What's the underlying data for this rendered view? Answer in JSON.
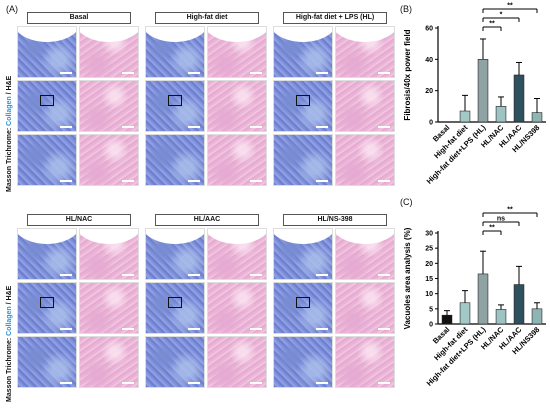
{
  "panel_a": {
    "letter": "(A)",
    "y_label_prefix": "Masson Trichrome: ",
    "y_label_blue": "Collagen",
    "y_label_suffix": " / H&E",
    "groups_top": [
      "Basal",
      "High-fat diet",
      "High-fat diet + LPS (HL)"
    ],
    "groups_bottom": [
      "HL/NAC",
      "HL/AAC",
      "HL/NS-398"
    ]
  },
  "panel_b": {
    "letter": "(B)",
    "chart_data": {
      "type": "bar",
      "ylabel": "Fibrosis/40x power field",
      "categories": [
        "Basal",
        "High-fat diet",
        "High-fat diet+LPS (HL)",
        "HL/NAC",
        "HL/AAC",
        "HL/NS398"
      ],
      "values": [
        0,
        7,
        40,
        10,
        30,
        6
      ],
      "errors": [
        0,
        10,
        13,
        6,
        8,
        9
      ],
      "colors": [
        "#111111",
        "#a3c9c6",
        "#8fa3a5",
        "#9ec3c3",
        "#2f505f",
        "#8fb4b4"
      ],
      "ylim": [
        0,
        60
      ],
      "yticks": [
        0,
        20,
        40,
        60
      ],
      "significance": [
        {
          "from": 2,
          "to": 3,
          "label": "**"
        },
        {
          "from": 2,
          "to": 4,
          "label": "*"
        },
        {
          "from": 2,
          "to": 5,
          "label": "**"
        }
      ]
    }
  },
  "panel_c": {
    "letter": "(C)",
    "chart_data": {
      "type": "bar",
      "ylabel": "Vacuoles area analysis (%)",
      "categories": [
        "Basal",
        "High-fat diet",
        "High-fat diet+LPS (HL)",
        "HL/NAC",
        "HL/AAC",
        "HL/NS398"
      ],
      "values": [
        2.9,
        7,
        16.5,
        4.8,
        13,
        5
      ],
      "errors": [
        1.5,
        4,
        7.5,
        1.5,
        6,
        2
      ],
      "colors": [
        "#111111",
        "#a3c9c6",
        "#8fa3a5",
        "#9ec3c3",
        "#2f505f",
        "#8fb4b4"
      ],
      "ylim": [
        0,
        30
      ],
      "yticks": [
        0,
        5,
        10,
        15,
        20,
        25,
        30
      ],
      "significance": [
        {
          "from": 2,
          "to": 3,
          "label": "**"
        },
        {
          "from": 2,
          "to": 4,
          "label": "ns"
        },
        {
          "from": 2,
          "to": 5,
          "label": "**"
        }
      ]
    }
  }
}
